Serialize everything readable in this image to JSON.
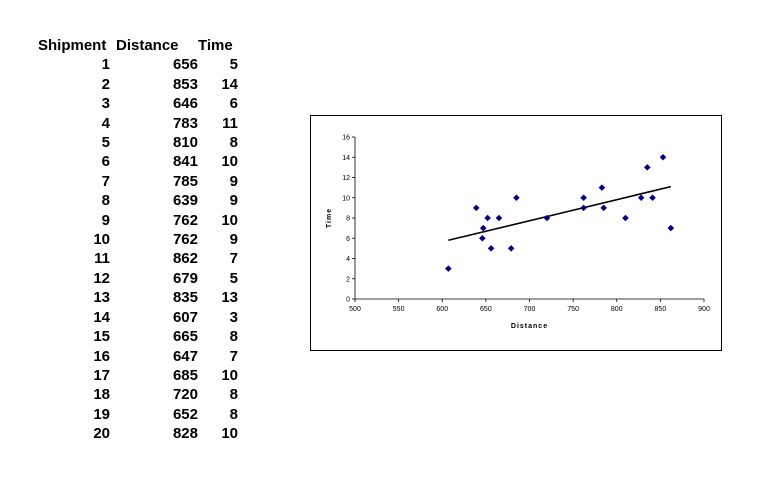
{
  "table": {
    "headers": [
      "Shipment",
      "Distance",
      "Time"
    ],
    "rows": [
      [
        "1",
        "656",
        "5"
      ],
      [
        "2",
        "853",
        "14"
      ],
      [
        "3",
        "646",
        "6"
      ],
      [
        "4",
        "783",
        "11"
      ],
      [
        "5",
        "810",
        "8"
      ],
      [
        "6",
        "841",
        "10"
      ],
      [
        "7",
        "785",
        "9"
      ],
      [
        "8",
        "639",
        "9"
      ],
      [
        "9",
        "762",
        "10"
      ],
      [
        "10",
        "762",
        "9"
      ],
      [
        "11",
        "862",
        "7"
      ],
      [
        "12",
        "679",
        "5"
      ],
      [
        "13",
        "835",
        "13"
      ],
      [
        "14",
        "607",
        "3"
      ],
      [
        "15",
        "665",
        "8"
      ],
      [
        "16",
        "647",
        "7"
      ],
      [
        "17",
        "685",
        "10"
      ],
      [
        "18",
        "720",
        "8"
      ],
      [
        "19",
        "652",
        "8"
      ],
      [
        "20",
        "828",
        "10"
      ]
    ]
  },
  "chart_data": {
    "type": "scatter",
    "xlabel": "Distance",
    "ylabel": "Time",
    "xlim": [
      500,
      900
    ],
    "ylim": [
      0,
      16
    ],
    "xticks": [
      "500",
      "550",
      "600",
      "650",
      "700",
      "750",
      "800",
      "850",
      "900"
    ],
    "yticks": [
      "0",
      "2",
      "4",
      "6",
      "8",
      "10",
      "12",
      "14",
      "16"
    ],
    "points": [
      [
        656,
        5
      ],
      [
        853,
        14
      ],
      [
        646,
        6
      ],
      [
        783,
        11
      ],
      [
        810,
        8
      ],
      [
        841,
        10
      ],
      [
        785,
        9
      ],
      [
        639,
        9
      ],
      [
        762,
        10
      ],
      [
        762,
        9
      ],
      [
        862,
        7
      ],
      [
        679,
        5
      ],
      [
        835,
        13
      ],
      [
        607,
        3
      ],
      [
        665,
        8
      ],
      [
        647,
        7
      ],
      [
        685,
        10
      ],
      [
        720,
        8
      ],
      [
        652,
        8
      ],
      [
        828,
        10
      ]
    ],
    "trendline": {
      "x": [
        607,
        862
      ],
      "y": [
        5.8,
        11.1
      ]
    },
    "marker_color": "#000080",
    "grid": false,
    "legend": "none"
  }
}
